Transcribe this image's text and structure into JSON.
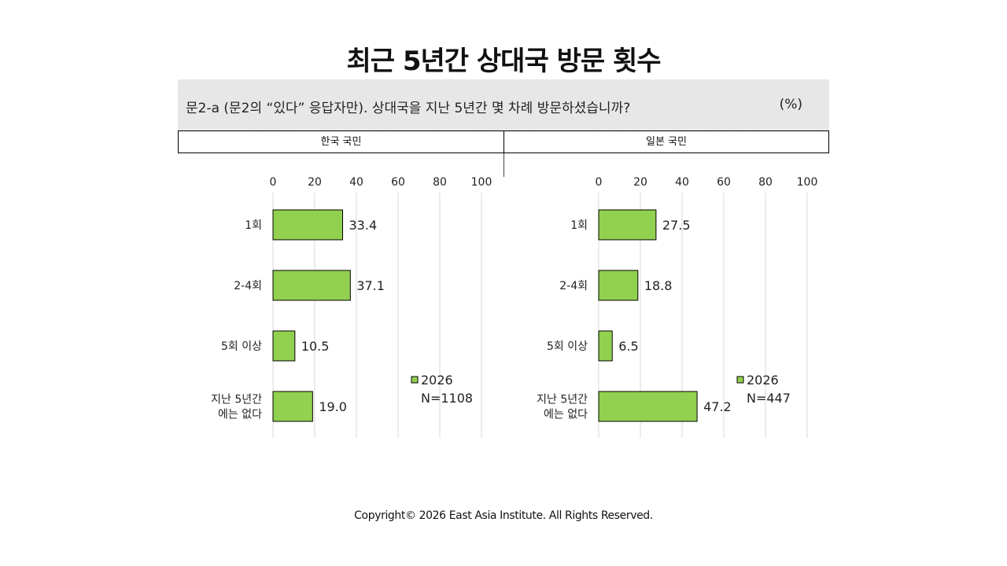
{
  "title": "최근 5년간 상대국 방문 횟수",
  "question": {
    "text": "문2-a (문2의 “있다” 응답자만). 상대국을 지난 5년간 몇 차례 방문하셨습니까?",
    "unit": "(%)"
  },
  "copyright": "Copyright© 2026 East Asia Institute. All Rights Reserved.",
  "colors": {
    "bar_fill": "#92d050",
    "bar_stroke": "#000000",
    "grid": "#d9d9d9"
  },
  "chart_data": [
    {
      "type": "bar",
      "orientation": "horizontal",
      "title": "한국 국민",
      "categories": [
        "1회",
        "2-4회",
        "5회 이상",
        "지난 5년간\n에는 없다"
      ],
      "series": [
        {
          "name": "2026",
          "values": [
            33.4,
            37.1,
            10.5,
            19.0
          ]
        }
      ],
      "value_labels": [
        "33.4",
        "37.1",
        "10.5",
        "19.0"
      ],
      "xlim": [
        0,
        100
      ],
      "xticks": [
        0,
        20,
        40,
        60,
        80,
        100
      ],
      "grid": true,
      "legend": {
        "position": "right",
        "entries": [
          "2026"
        ],
        "note": "N=1108"
      }
    },
    {
      "type": "bar",
      "orientation": "horizontal",
      "title": "일본 국민",
      "categories": [
        "1회",
        "2-4회",
        "5회 이상",
        "지난 5년간\n에는 없다"
      ],
      "series": [
        {
          "name": "2026",
          "values": [
            27.5,
            18.8,
            6.5,
            47.2
          ]
        }
      ],
      "value_labels": [
        "27.5",
        "18.8",
        "6.5",
        "47.2"
      ],
      "xlim": [
        0,
        100
      ],
      "xticks": [
        0,
        20,
        40,
        60,
        80,
        100
      ],
      "grid": true,
      "legend": {
        "position": "right",
        "entries": [
          "2026"
        ],
        "note": "N=447"
      }
    }
  ]
}
